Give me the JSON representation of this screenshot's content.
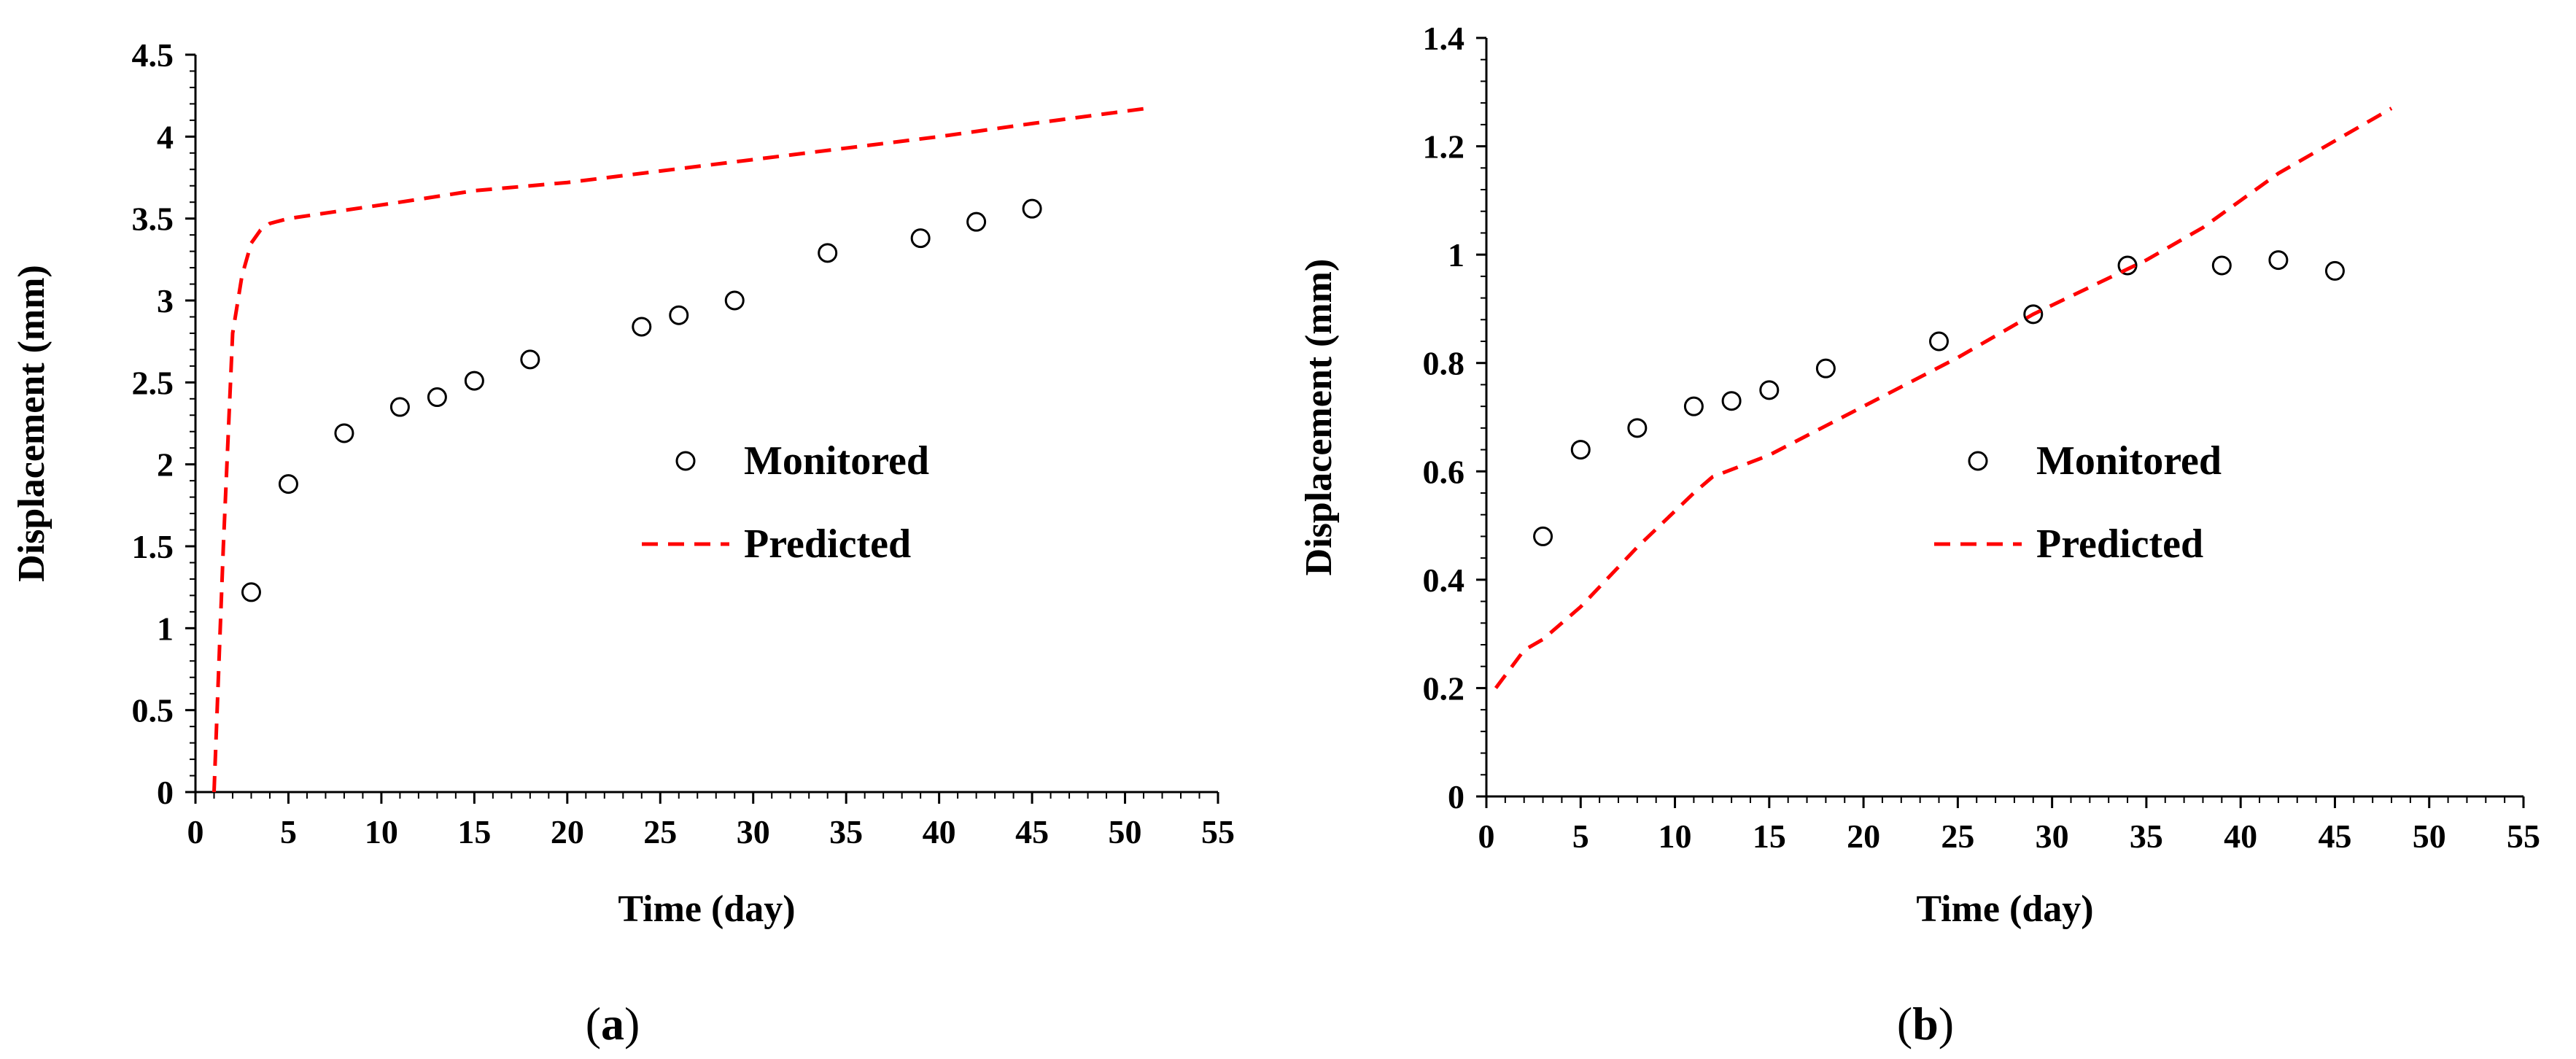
{
  "colors": {
    "predicted": "#ff0000",
    "axis": "#000000",
    "marker": "#000000",
    "background": "#ffffff"
  },
  "chart_data": [
    {
      "type": "scatter",
      "panel_label": "(a)",
      "panel_open": "(",
      "panel_letter": "a",
      "panel_close": ")",
      "xlabel": "Time (day)",
      "ylabel": "Displacement (mm)",
      "xlim": [
        0,
        55
      ],
      "ylim": [
        0,
        4.5
      ],
      "xticks": [
        0,
        5,
        10,
        15,
        20,
        25,
        30,
        35,
        40,
        45,
        50,
        55
      ],
      "yticks": [
        0,
        0.5,
        1,
        1.5,
        2,
        2.5,
        3,
        3.5,
        4,
        4.5
      ],
      "xtick_labels": [
        "0",
        "5",
        "10",
        "15",
        "20",
        "25",
        "30",
        "35",
        "40",
        "45",
        "50",
        "55"
      ],
      "ytick_labels": [
        "0",
        "0.5",
        "1",
        "1.5",
        "2",
        "2.5",
        "3",
        "3.5",
        "4",
        "4.5"
      ],
      "legend": {
        "position": "center-right",
        "entries": [
          "Monitored",
          "Predicted"
        ]
      },
      "series": [
        {
          "name": "Monitored",
          "style": "open-circle",
          "x": [
            3,
            5,
            8,
            11,
            13,
            15,
            18,
            24,
            26,
            29,
            34,
            39,
            42,
            45
          ],
          "y": [
            1.22,
            1.88,
            2.19,
            2.35,
            2.41,
            2.51,
            2.64,
            2.84,
            2.91,
            3.0,
            3.29,
            3.38,
            3.48,
            3.56
          ]
        },
        {
          "name": "Predicted",
          "style": "dashed-line",
          "x": [
            1,
            1.5,
            2,
            2.5,
            3,
            3.5,
            4,
            5,
            8,
            11,
            15,
            20,
            25,
            30,
            35,
            40,
            45,
            51
          ],
          "y": [
            0,
            1.5,
            2.8,
            3.15,
            3.35,
            3.43,
            3.47,
            3.5,
            3.55,
            3.6,
            3.67,
            3.72,
            3.79,
            3.86,
            3.93,
            4.0,
            4.08,
            4.17
          ]
        }
      ]
    },
    {
      "type": "scatter",
      "panel_label": "(b)",
      "panel_open": "(",
      "panel_letter": "b",
      "panel_close": ")",
      "xlabel": "Time (day)",
      "ylabel": "Displacement (mm)",
      "xlim": [
        0,
        55
      ],
      "ylim": [
        0,
        1.4
      ],
      "xticks": [
        0,
        5,
        10,
        15,
        20,
        25,
        30,
        35,
        40,
        45,
        50,
        55
      ],
      "yticks": [
        0,
        0.2,
        0.4,
        0.6,
        0.8,
        1.0,
        1.2,
        1.4
      ],
      "xtick_labels": [
        "0",
        "5",
        "10",
        "15",
        "20",
        "25",
        "30",
        "35",
        "40",
        "45",
        "50",
        "55"
      ],
      "ytick_labels": [
        "0",
        "0.2",
        "0.4",
        "0.6",
        "0.8",
        "1",
        "1.2",
        "1.4"
      ],
      "legend": {
        "position": "center-right",
        "entries": [
          "Monitored",
          "Predicted"
        ]
      },
      "series": [
        {
          "name": "Monitored",
          "style": "open-circle",
          "x": [
            3,
            5,
            8,
            11,
            13,
            15,
            18,
            24,
            29,
            34,
            39,
            42,
            45
          ],
          "y": [
            0.48,
            0.64,
            0.68,
            0.72,
            0.73,
            0.75,
            0.79,
            0.84,
            0.89,
            0.98,
            0.98,
            0.99,
            0.97
          ]
        },
        {
          "name": "Predicted",
          "style": "dashed-line",
          "x": [
            0.5,
            2,
            3,
            5,
            8,
            11,
            12,
            15,
            20,
            25,
            29,
            32,
            35,
            38,
            40,
            42,
            45,
            48
          ],
          "y": [
            0.2,
            0.27,
            0.29,
            0.35,
            0.46,
            0.56,
            0.59,
            0.63,
            0.72,
            0.81,
            0.89,
            0.94,
            0.99,
            1.05,
            1.1,
            1.15,
            1.21,
            1.27
          ]
        }
      ]
    }
  ]
}
